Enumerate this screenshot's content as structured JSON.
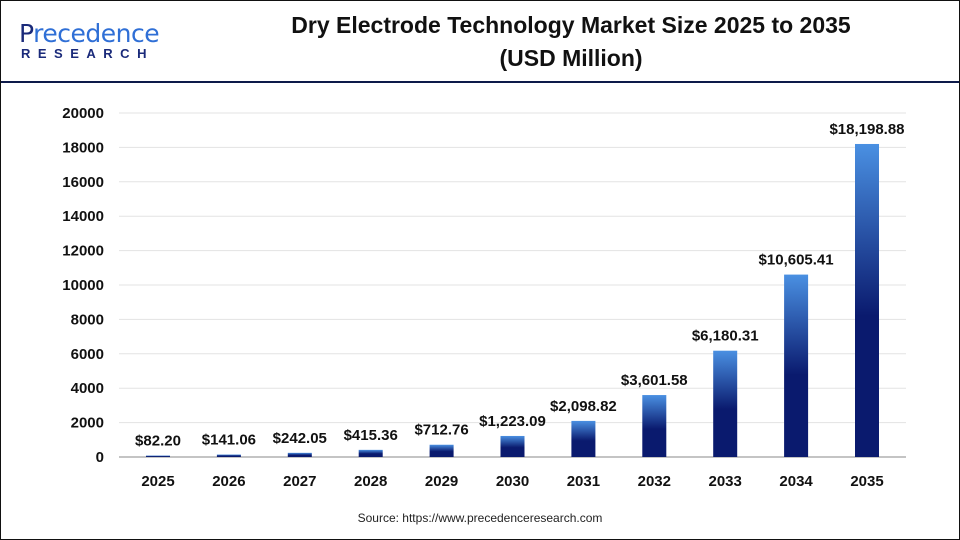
{
  "logo": {
    "line1_first": "P",
    "line1_rest": "recedence",
    "line2": "RESEARCH"
  },
  "title_line1": "Dry Electrode Technology Market Size 2025 to 2035",
  "title_line2": "(USD Million)",
  "source": "Source: https://www.precedenceresearch.com",
  "colors": {
    "bar_top": "#4a90e2",
    "bar_bottom": "#0a1a6e",
    "header_line": "#0d1a4a"
  },
  "chart_data": {
    "type": "bar",
    "title": "Dry Electrode Technology Market Size 2025 to 2035 (USD Million)",
    "categories": [
      "2025",
      "2026",
      "2027",
      "2028",
      "2029",
      "2030",
      "2031",
      "2032",
      "2033",
      "2034",
      "2035"
    ],
    "values": [
      82.2,
      141.06,
      242.05,
      415.36,
      712.76,
      1223.09,
      2098.82,
      3601.58,
      6180.31,
      10605.41,
      18198.88
    ],
    "data_labels": [
      "$82.20",
      "$141.06",
      "$242.05",
      "$415.36",
      "$712.76",
      "$1,223.09",
      "$2,098.82",
      "$3,601.58",
      "$6,180.31",
      "$10,605.41",
      "$18,198.88"
    ],
    "yticks": [
      0,
      2000,
      4000,
      6000,
      8000,
      10000,
      12000,
      14000,
      16000,
      18000,
      20000
    ],
    "ylim": [
      0,
      20000
    ],
    "grid": true,
    "xlabel": "",
    "ylabel": ""
  }
}
